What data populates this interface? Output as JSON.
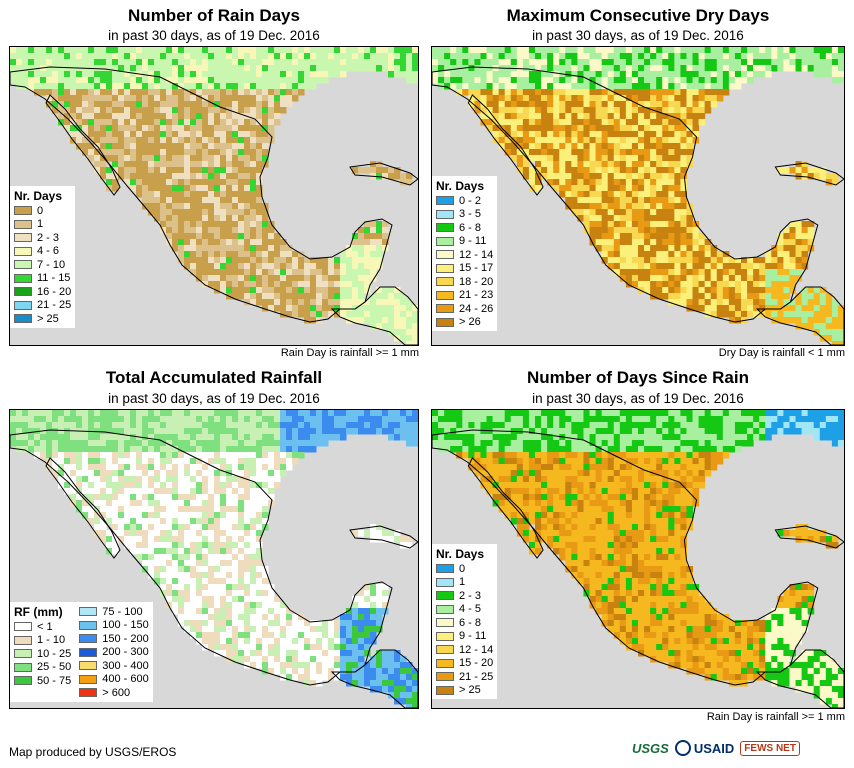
{
  "panels": [
    {
      "title": "Number of Rain Days",
      "subtitle": "in past 30 days, as of 19 Dec. 2016",
      "note": "Rain Day is rainfall >= 1 mm",
      "legend": {
        "title": "Nr. Days",
        "items": [
          {
            "label": "0",
            "color": "#c8a04c"
          },
          {
            "label": "1",
            "color": "#dcc28a"
          },
          {
            "label": "2 - 3",
            "color": "#efe0c2"
          },
          {
            "label": "4 - 6",
            "color": "#f7f7b8"
          },
          {
            "label": "7 - 10",
            "color": "#c9f7b0"
          },
          {
            "label": "11 - 15",
            "color": "#33d633"
          },
          {
            "label": "16 - 20",
            "color": "#1aa31a"
          },
          {
            "label": "21 - 25",
            "color": "#7fd6f0"
          },
          {
            "label": "> 25",
            "color": "#1a8cc8"
          }
        ]
      }
    },
    {
      "title": "Maximum Consecutive Dry Days",
      "subtitle": "in past 30 days, as of 19 Dec. 2016",
      "note": "Dry Day is rainfall < 1 mm",
      "legend": {
        "title": "Nr. Days",
        "items": [
          {
            "label": "0 - 2",
            "color": "#1ea0e6"
          },
          {
            "label": "3 - 5",
            "color": "#a0e6f5"
          },
          {
            "label": "6 - 8",
            "color": "#14c814"
          },
          {
            "label": "9 - 11",
            "color": "#a8f0a0"
          },
          {
            "label": "12 - 14",
            "color": "#fbf9c8"
          },
          {
            "label": "15 - 17",
            "color": "#fbf07a"
          },
          {
            "label": "18 - 20",
            "color": "#f7d850"
          },
          {
            "label": "21 - 23",
            "color": "#f5b81e"
          },
          {
            "label": "24 - 26",
            "color": "#e89a14"
          },
          {
            "label": "> 26",
            "color": "#c8820f"
          }
        ]
      }
    },
    {
      "title": "Total Accumulated Rainfall",
      "subtitle": "in past 30 days, as of 19 Dec. 2016",
      "note": "",
      "legend": {
        "title": "RF (mm)",
        "items": [
          {
            "label": "< 1",
            "color": "#ffffff"
          },
          {
            "label": "1 - 10",
            "color": "#efdcbc"
          },
          {
            "label": "10 - 25",
            "color": "#c8f0b4"
          },
          {
            "label": "25 - 50",
            "color": "#7ee07e"
          },
          {
            "label": "50 - 75",
            "color": "#3cc83c"
          },
          {
            "label": "75 - 100",
            "color": "#b4e6fa"
          },
          {
            "label": "100 - 150",
            "color": "#6cc0f0"
          },
          {
            "label": "150 - 200",
            "color": "#3c8cf0"
          },
          {
            "label": "200 - 300",
            "color": "#1e5adc"
          },
          {
            "label": "300 - 400",
            "color": "#fadc6e"
          },
          {
            "label": "400 - 600",
            "color": "#f5a014"
          },
          {
            "label": "> 600",
            "color": "#f03214"
          }
        ]
      }
    },
    {
      "title": "Number of Days Since Rain",
      "subtitle": "in past 30 days, as of 19 Dec. 2016",
      "note": "Rain Day is rainfall >= 1 mm",
      "legend": {
        "title": "Nr. Days",
        "items": [
          {
            "label": "0",
            "color": "#1ea0e6"
          },
          {
            "label": "1",
            "color": "#a0e6f5"
          },
          {
            "label": "2 - 3",
            "color": "#14c814"
          },
          {
            "label": "4 - 5",
            "color": "#a8f0a0"
          },
          {
            "label": "6 - 8",
            "color": "#fbf9c8"
          },
          {
            "label": "9 - 11",
            "color": "#fbf07a"
          },
          {
            "label": "12 - 14",
            "color": "#f7d850"
          },
          {
            "label": "15 - 20",
            "color": "#f5b81e"
          },
          {
            "label": "21 - 25",
            "color": "#e89a14"
          },
          {
            "label": "> 25",
            "color": "#c8820f"
          }
        ]
      }
    }
  ],
  "footer": {
    "credit": "Map produced by USGS/EROS",
    "logos": [
      "USGS",
      "USAID",
      "FEWS NET"
    ]
  },
  "map_colors": {
    "ocean": "#d8d8d8",
    "border": "#000000"
  }
}
